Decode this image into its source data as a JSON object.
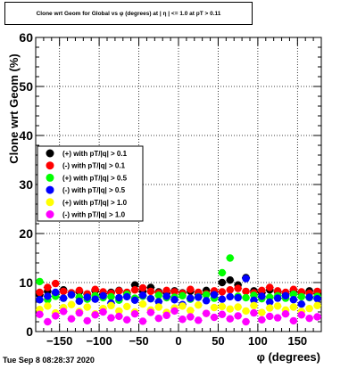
{
  "title": "Clone wrt Geom for Global vs φ (degrees) at | η | <= 1.0 at pT > 0.11",
  "timestamp": "Tue Sep  8 08:28:37 2020",
  "chart_data": {
    "type": "scatter",
    "xlabel": "φ (degrees)",
    "ylabel": "Clone wrt  Geom (%)",
    "xlim": [
      -180,
      180
    ],
    "ylim": [
      0,
      60
    ],
    "x_ticks": [
      -150,
      -100,
      -50,
      0,
      50,
      100,
      150
    ],
    "x_tick_labels": [
      "−150",
      "−100",
      "−50",
      "0",
      "50",
      "100",
      "150"
    ],
    "y_ticks": [
      0,
      10,
      20,
      30,
      40,
      50,
      60
    ],
    "y_tick_labels": [
      "0",
      "10",
      "20",
      "30",
      "40",
      "50",
      "60"
    ],
    "grid": true,
    "legend_position": "left, upper-middle",
    "series": [
      {
        "name": "(+) with pT/|q| > 0.1",
        "color": "#000000",
        "x": [
          -175,
          -165,
          -155,
          -145,
          -135,
          -125,
          -115,
          -105,
          -95,
          -85,
          -75,
          -65,
          -55,
          -45,
          -35,
          -25,
          -15,
          -5,
          5,
          15,
          25,
          35,
          45,
          55,
          65,
          75,
          85,
          95,
          105,
          115,
          125,
          135,
          145,
          155,
          165,
          175
        ],
        "y": [
          7.5,
          8.2,
          7.8,
          8.5,
          7.9,
          8.1,
          7.6,
          8.3,
          7.7,
          8.0,
          8.4,
          7.9,
          9.5,
          8.2,
          9.0,
          8.1,
          7.8,
          8.3,
          7.9,
          8.2,
          7.6,
          8.4,
          7.8,
          10.0,
          10.5,
          9.5,
          11.0,
          8.3,
          7.9,
          8.5,
          8.1,
          7.7,
          8.2,
          7.9,
          8.3,
          7.8
        ]
      },
      {
        "name": "(-) with pT/|q| > 0.1",
        "color": "#ff0000",
        "x": [
          -175,
          -165,
          -155,
          -145,
          -135,
          -125,
          -115,
          -105,
          -95,
          -85,
          -75,
          -65,
          -55,
          -45,
          -35,
          -25,
          -15,
          -5,
          5,
          15,
          25,
          35,
          45,
          55,
          65,
          75,
          85,
          95,
          105,
          115,
          125,
          135,
          145,
          155,
          165,
          175
        ],
        "y": [
          8.0,
          9.0,
          9.8,
          8.2,
          7.9,
          8.4,
          7.7,
          8.6,
          8.1,
          7.8,
          8.3,
          8.0,
          8.5,
          8.9,
          8.2,
          7.9,
          8.4,
          8.1,
          7.8,
          8.6,
          8.0,
          7.7,
          8.3,
          8.1,
          8.5,
          8.8,
          8.2,
          7.9,
          8.4,
          9.0,
          8.3,
          8.0,
          8.6,
          8.1,
          7.8,
          8.2
        ]
      },
      {
        "name": "(+) with pT/|q| > 0.5",
        "color": "#00ff00",
        "x": [
          -175,
          -165,
          -155,
          -145,
          -135,
          -125,
          -115,
          -105,
          -95,
          -85,
          -75,
          -65,
          -55,
          -45,
          -35,
          -25,
          -15,
          -5,
          5,
          15,
          25,
          35,
          45,
          55,
          65,
          75,
          85,
          95,
          105,
          115,
          125,
          135,
          145,
          155,
          165,
          175
        ],
        "y": [
          10.2,
          6.5,
          7.2,
          6.8,
          7.5,
          7.0,
          6.6,
          7.3,
          6.9,
          7.1,
          6.4,
          7.6,
          6.8,
          7.2,
          6.7,
          7.4,
          6.9,
          7.0,
          7.3,
          6.6,
          7.1,
          7.5,
          6.8,
          12.0,
          15.0,
          7.2,
          6.9,
          7.4,
          6.7,
          7.0,
          7.3,
          6.8,
          7.6,
          7.1,
          6.9,
          7.2
        ]
      },
      {
        "name": "(-) with pT/|q| > 0.5",
        "color": "#0000ff",
        "x": [
          -175,
          -165,
          -155,
          -145,
          -135,
          -125,
          -115,
          -105,
          -95,
          -85,
          -75,
          -65,
          -55,
          -45,
          -35,
          -25,
          -15,
          -5,
          5,
          15,
          25,
          35,
          45,
          55,
          65,
          75,
          85,
          95,
          105,
          115,
          125,
          135,
          145,
          155,
          165,
          175
        ],
        "y": [
          6.5,
          7.2,
          8.0,
          6.8,
          7.5,
          6.2,
          7.0,
          6.6,
          7.3,
          5.8,
          6.9,
          7.1,
          6.4,
          7.4,
          6.7,
          6.1,
          7.2,
          6.5,
          5.5,
          6.8,
          7.0,
          6.3,
          7.5,
          6.6,
          7.1,
          6.9,
          10.8,
          6.4,
          7.2,
          6.0,
          6.8,
          7.3,
          6.5,
          5.6,
          7.0,
          6.7
        ]
      },
      {
        "name": "(+) with pT/|q| > 1.0",
        "color": "#ffff00",
        "x": [
          -175,
          -165,
          -155,
          -145,
          -135,
          -125,
          -115,
          -105,
          -95,
          -85,
          -75,
          -65,
          -55,
          -45,
          -35,
          -25,
          -15,
          -5,
          5,
          15,
          25,
          35,
          45,
          55,
          65,
          75,
          85,
          95,
          105,
          115,
          125,
          135,
          145,
          155,
          165,
          175
        ],
        "y": [
          4.5,
          5.2,
          3.8,
          4.9,
          5.5,
          4.1,
          5.0,
          3.6,
          4.7,
          5.3,
          4.2,
          5.1,
          4.0,
          5.6,
          4.4,
          5.0,
          3.9,
          4.8,
          5.2,
          4.3,
          5.4,
          3.7,
          4.9,
          5.1,
          4.6,
          5.0,
          4.2,
          5.3,
          3.9,
          4.8,
          5.2,
          4.4,
          5.0,
          4.1,
          4.7,
          5.3
        ]
      },
      {
        "name": "(-) with pT/|q| > 1.0",
        "color": "#ff00ff",
        "x": [
          -175,
          -165,
          -155,
          -145,
          -135,
          -125,
          -115,
          -105,
          -95,
          -85,
          -75,
          -65,
          -55,
          -45,
          -35,
          -25,
          -15,
          -5,
          5,
          15,
          25,
          35,
          45,
          55,
          65,
          75,
          85,
          95,
          105,
          115,
          125,
          135,
          145,
          155,
          165,
          175
        ],
        "y": [
          3.5,
          2.0,
          3.2,
          4.1,
          2.6,
          3.8,
          2.2,
          3.4,
          4.0,
          2.8,
          3.1,
          2.4,
          3.6,
          2.1,
          3.9,
          2.7,
          3.3,
          4.2,
          2.5,
          3.0,
          2.3,
          3.7,
          2.9,
          3.5,
          2.6,
          3.2,
          2.0,
          3.8,
          2.4,
          3.1,
          2.8,
          3.6,
          2.2,
          3.4,
          2.7,
          3.0
        ]
      }
    ]
  }
}
